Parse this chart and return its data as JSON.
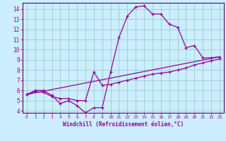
{
  "xlabel": "Windchill (Refroidissement éolien,°C)",
  "bg_color": "#cceeff",
  "grid_color": "#99cccc",
  "line_color": "#990099",
  "spine_color": "#660066",
  "xlim": [
    -0.5,
    23.5
  ],
  "ylim": [
    3.8,
    14.6
  ],
  "xticks": [
    0,
    1,
    2,
    3,
    4,
    5,
    6,
    7,
    8,
    9,
    10,
    11,
    12,
    13,
    14,
    15,
    16,
    17,
    18,
    19,
    20,
    21,
    22,
    23
  ],
  "yticks": [
    4,
    5,
    6,
    7,
    8,
    9,
    10,
    11,
    12,
    13,
    14
  ],
  "curve1_x": [
    0,
    1,
    2,
    3,
    4,
    5,
    6,
    7,
    8,
    9,
    10,
    11,
    12,
    13,
    14,
    15,
    16,
    17,
    18,
    19,
    20,
    21,
    22,
    23
  ],
  "curve1_y": [
    5.6,
    6.0,
    6.0,
    5.5,
    4.7,
    5.0,
    4.5,
    3.8,
    4.3,
    4.3,
    7.8,
    11.2,
    13.3,
    14.2,
    14.3,
    13.5,
    13.5,
    12.5,
    12.2,
    10.2,
    10.4,
    9.2,
    9.2,
    9.3
  ],
  "curve2_x": [
    0,
    1,
    2,
    3,
    4,
    5,
    6,
    7,
    8,
    9,
    10,
    11,
    12,
    13,
    14,
    15,
    16,
    17,
    18,
    19,
    20,
    21,
    22,
    23
  ],
  "curve2_y": [
    5.6,
    5.9,
    5.8,
    5.4,
    5.2,
    5.2,
    5.0,
    5.0,
    7.8,
    6.5,
    6.6,
    6.8,
    7.0,
    7.2,
    7.4,
    7.6,
    7.7,
    7.8,
    8.0,
    8.2,
    8.5,
    8.7,
    8.9,
    9.1
  ],
  "curve3_x": [
    0,
    23
  ],
  "curve3_y": [
    5.6,
    9.3
  ]
}
